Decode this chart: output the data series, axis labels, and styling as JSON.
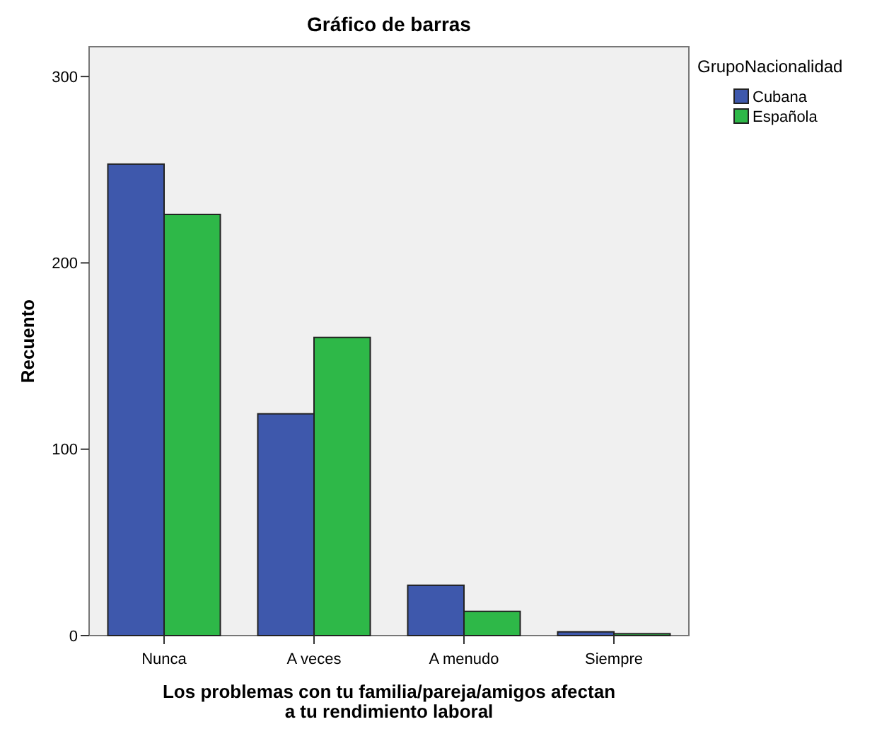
{
  "chart_data": {
    "type": "bar",
    "title": "Gráfico de barras",
    "xlabel": "Los problemas con tu familia/pareja/amigos afectan\na tu rendimiento laboral",
    "ylabel": "Recuento",
    "legend_title": "GrupoNacionalidad",
    "legend": "right",
    "categories": [
      "Nunca",
      "A veces",
      "A menudo",
      "Siempre"
    ],
    "series": [
      {
        "name": "Cubana",
        "color": "#3e58ac",
        "values": [
          253,
          119,
          27,
          2
        ]
      },
      {
        "name": "Española",
        "color": "#2eb848",
        "values": [
          226,
          160,
          13,
          1
        ]
      }
    ],
    "ylim": [
      0,
      316
    ],
    "yticks": [
      0,
      100,
      200,
      300
    ],
    "grid": false
  }
}
